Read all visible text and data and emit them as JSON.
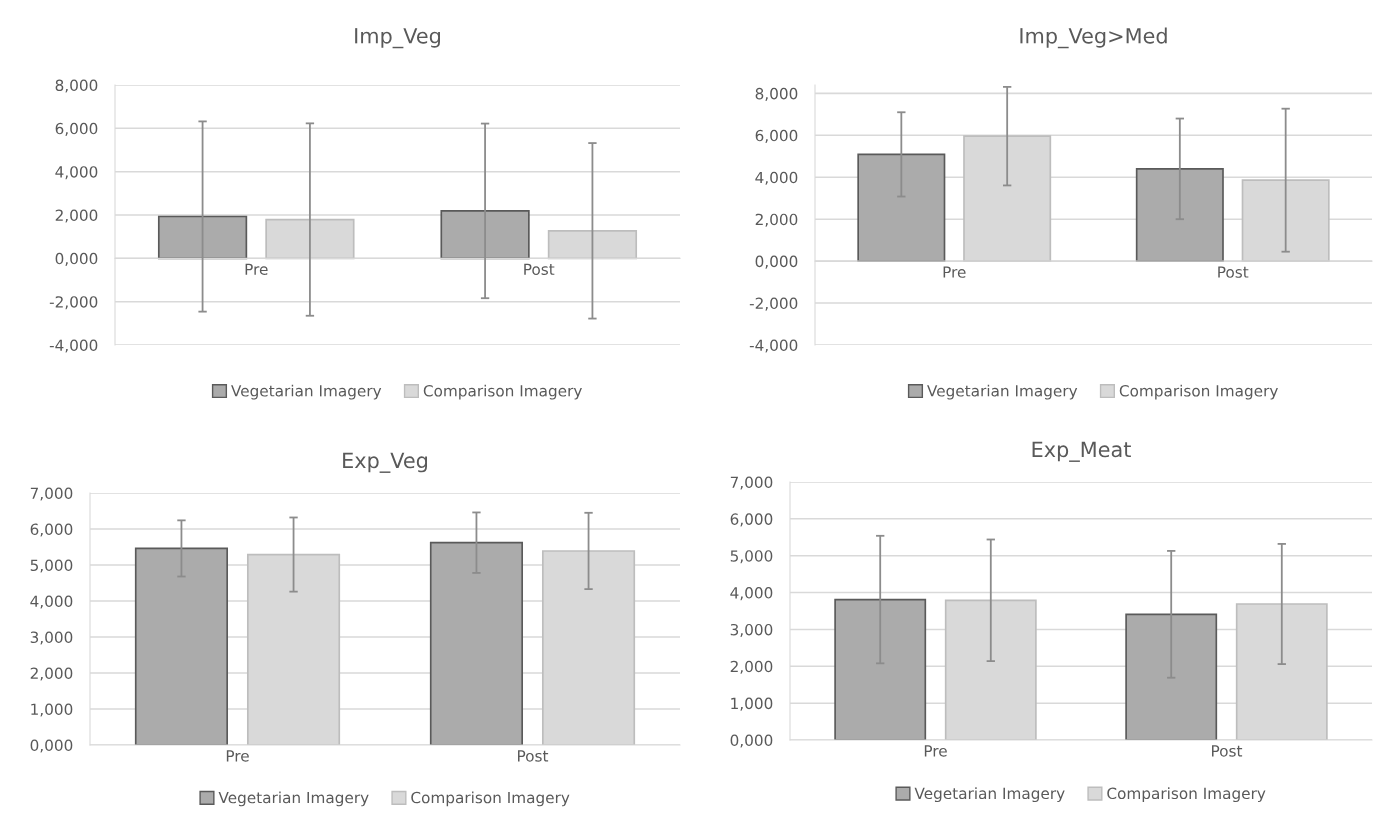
{
  "chart_data": [
    {
      "type": "bar",
      "title": "Imp_Veg",
      "categories": [
        "Pre",
        "Post"
      ],
      "ylim": [
        -4,
        8
      ],
      "yticks": [
        {
          "value": -4,
          "label": "-4,000"
        },
        {
          "value": -2,
          "label": "-2,000"
        },
        {
          "value": 0,
          "label": "0,000"
        },
        {
          "value": 2,
          "label": "2,000"
        },
        {
          "value": 4,
          "label": "4,000"
        },
        {
          "value": 6,
          "label": "6,000"
        },
        {
          "value": 8,
          "label": "8,000"
        }
      ],
      "grid": "y",
      "legend": "bottom",
      "series": [
        {
          "name": "Vegetarian Imagery",
          "color": "#ababab",
          "values": [
            1.93,
            2.19
          ],
          "errors": [
            4.39,
            4.03
          ]
        },
        {
          "name": "Comparison Imagery",
          "color": "#d9d9d9",
          "values": [
            1.79,
            1.27
          ],
          "errors": [
            4.44,
            4.05
          ]
        }
      ]
    },
    {
      "type": "bar",
      "title": "Imp_Veg>Med",
      "categories": [
        "Pre",
        "Post"
      ],
      "ylim": [
        -4,
        8.4
      ],
      "yticks": [
        {
          "value": -4,
          "label": "-4,000"
        },
        {
          "value": -2,
          "label": "-2,000"
        },
        {
          "value": 0,
          "label": "0,000"
        },
        {
          "value": 2,
          "label": "2,000"
        },
        {
          "value": 4,
          "label": "4,000"
        },
        {
          "value": 6,
          "label": "6,000"
        },
        {
          "value": 8,
          "label": "8,000"
        }
      ],
      "grid": "y",
      "legend": "bottom",
      "series": [
        {
          "name": "Vegetarian Imagery",
          "color": "#ababab",
          "values": [
            5.09,
            4.4
          ],
          "errors": [
            2.01,
            2.4
          ]
        },
        {
          "name": "Comparison Imagery",
          "color": "#d9d9d9",
          "values": [
            5.96,
            3.86
          ],
          "errors": [
            2.35,
            3.41
          ]
        }
      ]
    },
    {
      "type": "bar",
      "title": "Exp_Veg",
      "categories": [
        "Pre",
        "Post"
      ],
      "ylim": [
        0,
        7
      ],
      "yticks": [
        {
          "value": 0,
          "label": "0,000"
        },
        {
          "value": 1,
          "label": "1,000"
        },
        {
          "value": 2,
          "label": "2,000"
        },
        {
          "value": 3,
          "label": "3,000"
        },
        {
          "value": 4,
          "label": "4,000"
        },
        {
          "value": 5,
          "label": "5,000"
        },
        {
          "value": 6,
          "label": "6,000"
        },
        {
          "value": 7,
          "label": "7,000"
        }
      ],
      "grid": "y",
      "legend": "bottom",
      "series": [
        {
          "name": "Vegetarian Imagery",
          "color": "#ababab",
          "values": [
            5.46,
            5.62
          ],
          "errors": [
            0.78,
            0.84
          ]
        },
        {
          "name": "Comparison Imagery",
          "color": "#d9d9d9",
          "values": [
            5.29,
            5.39
          ],
          "errors": [
            1.03,
            1.06
          ]
        }
      ]
    },
    {
      "type": "bar",
      "title": "Exp_Meat",
      "categories": [
        "Pre",
        "Post"
      ],
      "ylim": [
        0,
        7
      ],
      "yticks": [
        {
          "value": 0,
          "label": "0,000"
        },
        {
          "value": 1,
          "label": "1,000"
        },
        {
          "value": 2,
          "label": "2,000"
        },
        {
          "value": 3,
          "label": "3,000"
        },
        {
          "value": 4,
          "label": "4,000"
        },
        {
          "value": 5,
          "label": "5,000"
        },
        {
          "value": 6,
          "label": "6,000"
        },
        {
          "value": 7,
          "label": "7,000"
        }
      ],
      "grid": "y",
      "legend": "bottom",
      "series": [
        {
          "name": "Vegetarian Imagery",
          "color": "#ababab",
          "values": [
            3.81,
            3.41
          ],
          "errors": [
            1.73,
            1.72
          ]
        },
        {
          "name": "Comparison Imagery",
          "color": "#d9d9d9",
          "values": [
            3.79,
            3.69
          ],
          "errors": [
            1.65,
            1.63
          ]
        }
      ]
    }
  ]
}
